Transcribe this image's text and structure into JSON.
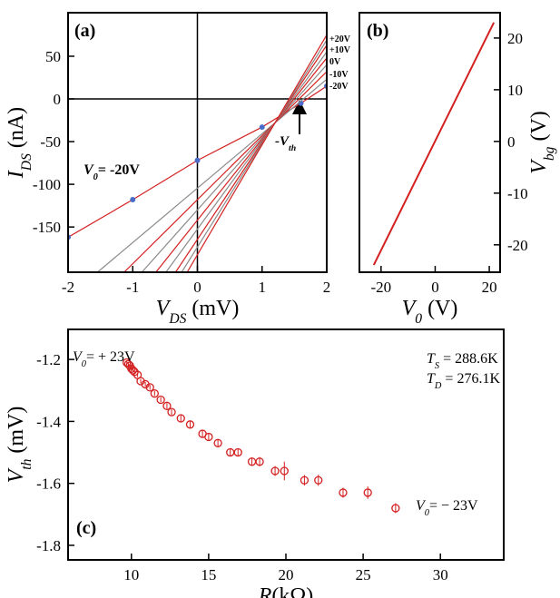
{
  "chart_data": [
    {
      "type": "line",
      "xlabel": {
        "parts": [
          "V",
          "DS",
          " (mV)"
        ],
        "sub": [
          1
        ],
        "italic": [
          0
        ]
      },
      "ylabel": {
        "parts": [
          "I",
          "DS",
          " (nA)"
        ],
        "sub": [
          1
        ],
        "italic": [
          0
        ]
      },
      "xlim": [
        -2,
        2
      ],
      "xticks": [
        -2,
        -1,
        0,
        1,
        2
      ],
      "ylim": [
        -203,
        101
      ],
      "yticks": [
        -150,
        -100,
        -50,
        0,
        50
      ],
      "yaxis_side": "left",
      "zero_lines": true,
      "series": [
        {
          "color": "#d42020",
          "markers": true,
          "marker_color": "#4a6cc8",
          "x": [
            -2,
            -1,
            0,
            1,
            1.6,
            2
          ],
          "values": [
            -162,
            -118,
            -72,
            -33,
            -5,
            15
          ]
        },
        {
          "color": "#8a8a8a",
          "x": [
            -1.545,
            2
          ],
          "values": [
            -203,
            23
          ]
        },
        {
          "color": "#d42020",
          "x": [
            -1.133,
            2
          ],
          "values": [
            -203,
            32
          ]
        },
        {
          "color": "#8a8a8a",
          "x": [
            -0.859,
            2
          ],
          "values": [
            -203,
            40
          ]
        },
        {
          "color": "#d42020",
          "x": [
            -0.642,
            2
          ],
          "values": [
            -203,
            48
          ]
        },
        {
          "color": "#8a8a8a",
          "x": [
            -0.487,
            2
          ],
          "values": [
            -203,
            55
          ]
        },
        {
          "color": "#d42020",
          "x": [
            -0.338,
            2
          ],
          "values": [
            -203,
            63
          ]
        },
        {
          "color": "#8a8a8a",
          "x": [
            -0.243,
            2
          ],
          "values": [
            -203,
            69
          ]
        },
        {
          "color": "#d42020",
          "x": [
            -0.159,
            2
          ],
          "values": [
            -203,
            75
          ]
        }
      ],
      "annotations": [
        {
          "parts": [
            "(a)"
          ],
          "bold": true
        },
        {
          "parts": [
            "V",
            "0",
            "= -20V"
          ],
          "sub": [
            1
          ],
          "italic": [
            0
          ],
          "bold": true,
          "color": "#d42020"
        },
        {
          "parts": [
            "-V",
            "th"
          ],
          "sub": [
            1
          ],
          "italic": [
            0
          ],
          "bold": true
        },
        {
          "parts": [
            "+20V"
          ],
          "bold": true,
          "color": "#d42020"
        },
        {
          "parts": [
            "+10V"
          ],
          "bold": true,
          "color": "#d42020"
        },
        {
          "parts": [
            "0V"
          ],
          "bold": true,
          "color": "#d42020"
        },
        {
          "parts": [
            "-10V"
          ],
          "bold": true,
          "color": "#d42020"
        },
        {
          "parts": [
            "-20V"
          ],
          "bold": true,
          "color": "#d42020"
        }
      ]
    },
    {
      "type": "line",
      "xlabel": {
        "parts": [
          "V",
          "0",
          " (V)"
        ],
        "sub": [
          1
        ],
        "italic": [
          0
        ]
      },
      "ylabel": {
        "parts": [
          "V",
          "bg",
          " (V)"
        ],
        "sub": [
          1
        ],
        "italic": [
          0
        ]
      },
      "xlim": [
        -28,
        24
      ],
      "xticks": [
        -20,
        0,
        20
      ],
      "ylim": [
        -25.3,
        24.9
      ],
      "yticks": [
        -20,
        -10,
        0,
        10,
        20
      ],
      "yaxis_side": "right",
      "series": [
        {
          "color": "#d42020",
          "x": [
            -22.7,
            21.7
          ],
          "values": [
            -23.9,
            23
          ]
        }
      ],
      "annotations": [
        {
          "parts": [
            "(b)"
          ],
          "bold": true
        }
      ]
    },
    {
      "type": "scatter",
      "xlabel": {
        "parts": [
          "R",
          "(kΩ)"
        ],
        "sub": [],
        "italic": [
          0
        ]
      },
      "ylabel": {
        "parts": [
          "V",
          "th",
          " (mV)"
        ],
        "sub": [
          1
        ],
        "italic": [
          0
        ]
      },
      "xlim": [
        5.9,
        34.1
      ],
      "xticks": [
        10,
        15,
        20,
        25,
        30
      ],
      "ylim": [
        -1.847,
        -1.103
      ],
      "yticks": [
        -1.8,
        -1.6,
        -1.4,
        -1.2
      ],
      "yaxis_side": "left",
      "color": "#d42020",
      "x": [
        9.7,
        9.8,
        9.9,
        10.0,
        10.1,
        10.2,
        10.4,
        10.6,
        10.9,
        11.2,
        11.5,
        11.9,
        12.3,
        12.6,
        13.2,
        13.8,
        14.6,
        15.0,
        15.6,
        16.4,
        16.9,
        17.8,
        18.3,
        19.3,
        19.9,
        21.2,
        22.1,
        23.7,
        25.3,
        27.1
      ],
      "values": [
        -1.21,
        -1.215,
        -1.22,
        -1.23,
        -1.235,
        -1.24,
        -1.25,
        -1.27,
        -1.28,
        -1.29,
        -1.31,
        -1.33,
        -1.35,
        -1.37,
        -1.39,
        -1.41,
        -1.44,
        -1.45,
        -1.47,
        -1.5,
        -1.5,
        -1.53,
        -1.53,
        -1.56,
        -1.56,
        -1.59,
        -1.59,
        -1.63,
        -1.63,
        -1.68
      ],
      "errors": [
        0.005,
        0.005,
        0.005,
        0.006,
        0.006,
        0.006,
        0.007,
        0.007,
        0.007,
        0.008,
        0.008,
        0.008,
        0.009,
        0.009,
        0.01,
        0.01,
        0.011,
        0.011,
        0.012,
        0.013,
        0.013,
        0.014,
        0.015,
        0.016,
        0.03,
        0.017,
        0.018,
        0.016,
        0.02,
        0.016
      ],
      "annotations": [
        {
          "parts": [
            "(c)"
          ],
          "bold": true
        },
        {
          "parts": [
            "V",
            "0",
            "= + 23V"
          ],
          "sub": [
            1
          ],
          "italic": [
            0
          ]
        },
        {
          "parts": [
            "T",
            "S",
            " = 288.6K"
          ],
          "sub": [
            1
          ],
          "italic": [
            0
          ]
        },
        {
          "parts": [
            "T",
            "D",
            " = 276.1K"
          ],
          "sub": [
            1
          ],
          "italic": [
            0
          ]
        },
        {
          "parts": [
            "V",
            "0",
            "= − 23V"
          ],
          "sub": [
            1
          ],
          "italic": [
            0
          ]
        }
      ]
    }
  ]
}
